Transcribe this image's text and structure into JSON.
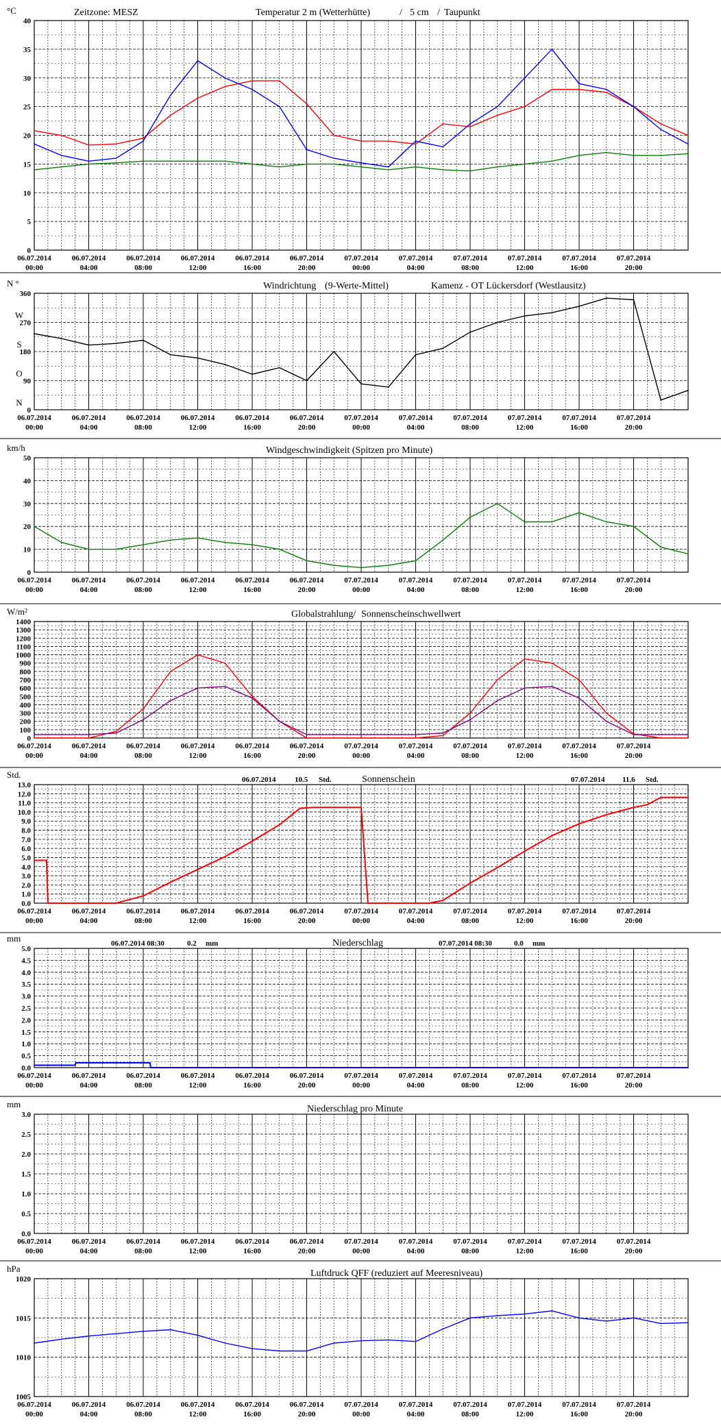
{
  "x_labels": [
    [
      "06.07.2014",
      "00:00"
    ],
    [
      "06.07.2014",
      "04:00"
    ],
    [
      "06.07.2014",
      "08:00"
    ],
    [
      "06.07.2014",
      "12:00"
    ],
    [
      "06.07.2014",
      "16:00"
    ],
    [
      "06.07.2014",
      "20:00"
    ],
    [
      "07.07.2014",
      "00:00"
    ],
    [
      "07.07.2014",
      "04:00"
    ],
    [
      "07.07.2014",
      "08:00"
    ],
    [
      "07.07.2014",
      "12:00"
    ],
    [
      "07.07.2014",
      "16:00"
    ],
    [
      "07.07.2014",
      "20:00"
    ]
  ],
  "colors": {
    "temperature": "#ff0000",
    "soil_5cm": "#0000ff",
    "dewpoint": "#008000",
    "wind_dir": "#3366ff",
    "wind_dir_mean": "#000000",
    "wind_speed": "#008000",
    "radiation": "#ff0000",
    "threshold": "#800080",
    "sunshine": "#ff0000",
    "precip": "#0000ff",
    "pressure": "#0000ff"
  },
  "chart_data": [
    {
      "id": "temp",
      "type": "line",
      "unit": "°C",
      "title_parts": [
        {
          "text": "Zeitzone: MESZ",
          "color": "#000000"
        },
        {
          "text": "Temperatur 2 m (Wetterhütte)",
          "color": "#ff0000"
        },
        {
          "text": "/",
          "color": "#0000ff"
        },
        {
          "text": "5 cm",
          "color": "#0000ff"
        },
        {
          "text": "/",
          "color": "#008000"
        },
        {
          "text": "Taupunkt",
          "color": "#008000"
        }
      ],
      "ylim": [
        0,
        40
      ],
      "yticks": [
        "0",
        "5",
        "10",
        "15",
        "20",
        "25",
        "30",
        "35",
        "40"
      ],
      "x_hours": [
        0,
        2,
        4,
        6,
        8,
        10,
        12,
        14,
        16,
        18,
        20,
        22,
        24,
        26,
        28,
        30,
        32,
        34,
        36,
        38,
        40,
        42,
        44,
        46,
        48
      ],
      "series": [
        {
          "key": "temp_2m",
          "values": [
            20.8,
            20,
            18.3,
            18.5,
            19.5,
            23.5,
            26.5,
            28.5,
            29.5,
            29.5,
            25.5,
            20,
            19,
            19,
            18.5,
            22,
            21.5,
            23.5,
            25,
            28,
            28,
            27.5,
            25,
            22,
            20
          ]
        },
        {
          "key": "temp_5cm",
          "values": [
            18.5,
            16.5,
            15.5,
            16,
            19,
            27,
            33,
            30,
            28,
            25,
            17.5,
            16,
            15.2,
            14.5,
            19,
            18,
            22,
            25,
            30,
            35,
            29,
            28,
            25,
            21,
            18.5
          ]
        },
        {
          "key": "dewpoint",
          "values": [
            14,
            14.5,
            15,
            15.2,
            15.5,
            15.5,
            15.5,
            15.5,
            15,
            14.5,
            15,
            15,
            14.5,
            14,
            14.5,
            14,
            13.8,
            14.5,
            15,
            15.5,
            16.5,
            17,
            16.5,
            16.5,
            16.8
          ]
        }
      ]
    },
    {
      "id": "wind_dir",
      "type": "line",
      "unit": "N °",
      "title_parts": [
        {
          "text": "Windrichtung",
          "color": "#3366ff"
        },
        {
          "text": "(9-Werte-Mittel)",
          "color": "#000000"
        },
        {
          "text": "Kamenz - OT Lückersdorf (Westlausitz)",
          "color": "#000000"
        }
      ],
      "ylim": [
        0,
        360
      ],
      "yticks": [
        "0",
        "90",
        "180",
        "270",
        "360"
      ],
      "dir_labels": [
        "N",
        "O",
        "S",
        "W"
      ],
      "x_hours": [
        0,
        2,
        4,
        6,
        8,
        10,
        12,
        14,
        16,
        18,
        20,
        22,
        24,
        26,
        28,
        30,
        32,
        34,
        36,
        38,
        40,
        42,
        44,
        46,
        48
      ],
      "series": [
        {
          "key": "mean",
          "values": [
            235,
            220,
            200,
            205,
            215,
            170,
            160,
            140,
            110,
            130,
            90,
            180,
            80,
            70,
            170,
            190,
            240,
            270,
            290,
            300,
            320,
            345,
            340,
            30,
            60
          ]
        }
      ]
    },
    {
      "id": "wind_speed",
      "type": "line",
      "unit": "km/h",
      "title_parts": [
        {
          "text": "Windgeschwindigkeit (Spitzen pro Minute)",
          "color": "#000000"
        }
      ],
      "ylim": [
        0,
        50
      ],
      "yticks": [
        "0",
        "10",
        "20",
        "30",
        "40",
        "50"
      ],
      "x_hours": [
        0,
        2,
        4,
        6,
        8,
        10,
        12,
        14,
        16,
        18,
        20,
        22,
        24,
        26,
        28,
        30,
        32,
        34,
        36,
        38,
        40,
        42,
        44,
        46,
        48
      ],
      "series": [
        {
          "key": "gust",
          "values": [
            20,
            13,
            10,
            10,
            12,
            14,
            15,
            13,
            12,
            10,
            5,
            3,
            2,
            3,
            5,
            14,
            24,
            30,
            22,
            22,
            26,
            22,
            20,
            11,
            8
          ]
        }
      ]
    },
    {
      "id": "radiation",
      "type": "line",
      "unit": "W/m²",
      "title_parts": [
        {
          "text": "Globalstrahlung/",
          "color": "#000000"
        },
        {
          "text": "Sonnenscheinschwellwert",
          "color": "#800080"
        }
      ],
      "ylim": [
        0,
        1400
      ],
      "yticks": [
        "0",
        "100",
        "200",
        "300",
        "400",
        "500",
        "600",
        "700",
        "800",
        "900",
        "1000",
        "1100",
        "1200",
        "1300",
        "1400"
      ],
      "x_hours": [
        0,
        2,
        4,
        6,
        8,
        10,
        12,
        14,
        16,
        18,
        20,
        22,
        24,
        26,
        28,
        30,
        32,
        34,
        36,
        38,
        40,
        42,
        44,
        46,
        48
      ],
      "series": [
        {
          "key": "global",
          "values": [
            0,
            0,
            0,
            80,
            350,
            800,
            1000,
            900,
            500,
            200,
            0,
            0,
            0,
            0,
            0,
            30,
            300,
            700,
            950,
            900,
            700,
            300,
            50,
            0,
            0
          ]
        },
        {
          "key": "threshold",
          "values": [
            40,
            40,
            40,
            60,
            220,
            450,
            600,
            620,
            480,
            200,
            40,
            40,
            40,
            40,
            40,
            60,
            220,
            450,
            600,
            620,
            480,
            200,
            40,
            40,
            40
          ]
        }
      ]
    },
    {
      "id": "sunshine",
      "type": "line",
      "unit": "Std.",
      "title_parts": [
        {
          "text": "Sonnenschein",
          "color": "#000000"
        }
      ],
      "annotations": [
        {
          "date": "06.07.2014",
          "value": "10.5",
          "unit": "Std."
        },
        {
          "date": "07.07.2014",
          "value": "11.6",
          "unit": "Std."
        }
      ],
      "ylim": [
        0,
        13
      ],
      "yticks": [
        "0.0",
        "1.0",
        "2.0",
        "3.0",
        "4.0",
        "5.0",
        "6.0",
        "7.0",
        "8.0",
        "9.0",
        "10.0",
        "11.0",
        "12.0",
        "13.0"
      ],
      "x_hours": [
        0,
        0.9,
        1,
        6,
        7,
        8,
        10,
        12,
        14,
        16,
        18,
        19.5,
        20.5,
        24,
        24.5,
        29,
        30,
        32,
        34,
        36,
        38,
        40,
        42,
        44,
        45,
        46,
        48
      ],
      "series": [
        {
          "key": "sun",
          "values": [
            4.7,
            4.7,
            0,
            0,
            0.4,
            0.8,
            2.3,
            3.7,
            5.1,
            6.8,
            8.6,
            10.4,
            10.5,
            10.5,
            0,
            0,
            0.3,
            2.2,
            3.9,
            5.7,
            7.4,
            8.7,
            9.7,
            10.5,
            10.8,
            11.6,
            11.6
          ]
        }
      ]
    },
    {
      "id": "precip",
      "type": "line",
      "unit": "mm",
      "title_parts": [
        {
          "text": "Niederschlag",
          "color": "#000000"
        }
      ],
      "annotations": [
        {
          "date": "06.07.2014 08:30",
          "value": "0.2",
          "unit": "mm"
        },
        {
          "date": "07.07.2014 08:30",
          "value": "0.0",
          "unit": "mm"
        }
      ],
      "ylim": [
        0,
        5
      ],
      "yticks": [
        "0.0",
        "0.5",
        "1.0",
        "1.5",
        "2.0",
        "2.5",
        "3.0",
        "3.5",
        "4.0",
        "4.5",
        "5.0"
      ],
      "x_hours": [
        0,
        3,
        3.05,
        8.5,
        8.55,
        48
      ],
      "series": [
        {
          "key": "rain",
          "values": [
            0.1,
            0.1,
            0.2,
            0.2,
            0.0,
            0.0
          ]
        }
      ]
    },
    {
      "id": "precip_min",
      "type": "line",
      "unit": "mm",
      "title_parts": [
        {
          "text": "Niederschlag pro Minute",
          "color": "#000000"
        }
      ],
      "ylim": [
        0,
        3
      ],
      "yticks": [
        "0.0",
        "0.5",
        "1.0",
        "1.5",
        "2.0",
        "2.5",
        "3.0"
      ],
      "x_hours": [],
      "series": []
    },
    {
      "id": "pressure",
      "type": "line",
      "unit": "hPa",
      "title_parts": [
        {
          "text": "Luftdruck QFF (reduziert auf Meeresniveau)",
          "color": "#000000"
        }
      ],
      "ylim": [
        1005,
        1020
      ],
      "yticks": [
        "1005",
        "1010",
        "1015",
        "1020"
      ],
      "x_hours": [
        0,
        2,
        4,
        6,
        8,
        10,
        12,
        14,
        16,
        18,
        20,
        22,
        24,
        26,
        28,
        30,
        32,
        34,
        36,
        38,
        40,
        42,
        44,
        46,
        48
      ],
      "series": [
        {
          "key": "qff",
          "values": [
            1011.8,
            1012.3,
            1012.7,
            1013,
            1013.3,
            1013.5,
            1012.8,
            1011.8,
            1011.1,
            1010.8,
            1010.8,
            1011.8,
            1012.1,
            1012.2,
            1012,
            1013.6,
            1015,
            1015.3,
            1015.5,
            1015.9,
            1015,
            1014.6,
            1015,
            1014.3,
            1014.4
          ]
        }
      ]
    }
  ]
}
